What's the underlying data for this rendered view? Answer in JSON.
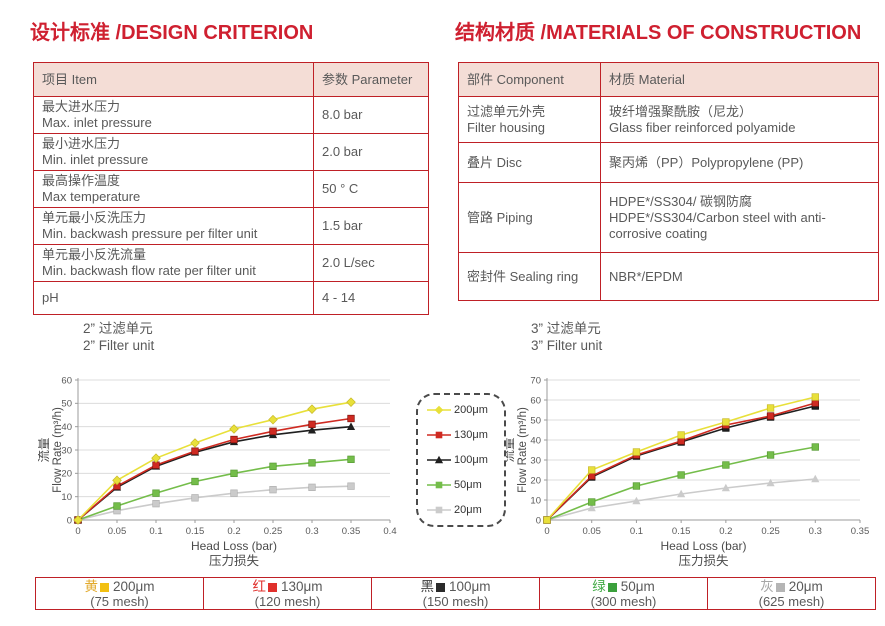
{
  "headings": {
    "design": "设计标准 /DESIGN CRITERION",
    "materials": "结构材质 /MATERIALS OF CONSTRUCTION",
    "accent_color": "#cf2030"
  },
  "design_table": {
    "headers": [
      "项目 Item",
      "参数 Parameter"
    ],
    "rows": [
      [
        [
          "最大进水压力",
          "Max. inlet pressure"
        ],
        [
          "8.0 bar"
        ]
      ],
      [
        [
          "最小进水压力",
          "Min. inlet pressure"
        ],
        [
          "2.0 bar"
        ]
      ],
      [
        [
          "最高操作温度",
          "Max temperature"
        ],
        [
          "50 ° C"
        ]
      ],
      [
        [
          "单元最小反洗压力",
          "Min. backwash pressure per filter unit"
        ],
        [
          "1.5 bar"
        ]
      ],
      [
        [
          "单元最小反洗流量",
          "Min. backwash flow rate per filter unit"
        ],
        [
          "2.0 L/sec"
        ]
      ],
      [
        [
          "pH"
        ],
        [
          "4 - 14"
        ]
      ]
    ]
  },
  "materials_table": {
    "headers": [
      "部件 Component",
      "材质 Material"
    ],
    "rows": [
      [
        [
          "过滤单元外壳",
          "Filter housing"
        ],
        [
          "玻纤增强聚酰胺（尼龙）",
          "Glass fiber reinforced polyamide"
        ]
      ],
      [
        [
          "叠片 Disc"
        ],
        [
          "聚丙烯（PP）Polypropylene (PP)"
        ]
      ],
      [
        [
          "管路 Piping"
        ],
        [
          "HDPE*/SS304/ 碳钢防腐",
          "HDPE*/SS304/Carbon steel with anti-corrosive coating"
        ]
      ],
      [
        [
          "密封件 Sealing ring"
        ],
        [
          "NBR*/EPDM"
        ]
      ]
    ]
  },
  "chart_data": [
    {
      "type": "line",
      "title_zh": "2” 过滤单元",
      "title_en": "2” Filter unit",
      "xlabel": "Head Loss (bar)",
      "xlabel_zh": "压力损失",
      "ylabel_zh": "流量",
      "ylabel": "Flow Rate (m³/h)",
      "x": [
        0,
        0.05,
        0.1,
        0.15,
        0.2,
        0.25,
        0.3,
        0.35
      ],
      "xticks": [
        0,
        0.05,
        0.1,
        0.15,
        0.2,
        0.25,
        0.3,
        0.35,
        0.4
      ],
      "xlim": [
        0,
        0.4
      ],
      "ylim": [
        0,
        60
      ],
      "yticks": [
        0,
        10,
        20,
        30,
        40,
        50,
        60
      ],
      "grid": true,
      "series": [
        {
          "name": "200μm",
          "marker": "diamond",
          "color": "#e8e03a",
          "edge": "#c8b92a",
          "values": [
            0,
            17,
            26.5,
            33,
            39,
            43,
            47.5,
            50.5
          ]
        },
        {
          "name": "130μm",
          "marker": "square",
          "color": "#cf2a21",
          "edge": "#7e150f",
          "values": [
            0,
            14.5,
            23.5,
            29.5,
            34.5,
            38,
            41,
            43.5
          ]
        },
        {
          "name": "100μm",
          "marker": "triangle",
          "color": "#1f1f1f",
          "edge": "#000000",
          "values": [
            0,
            14,
            23,
            29,
            33.5,
            36.5,
            38.5,
            40
          ]
        },
        {
          "name": "50μm",
          "marker": "square",
          "color": "#74bd4a",
          "edge": "#569a33",
          "values": [
            0,
            6,
            11.5,
            16.5,
            20,
            23,
            24.5,
            26
          ]
        },
        {
          "name": "20μm",
          "marker": "square",
          "color": "#cbcbcb",
          "edge": "#b0b0b0",
          "values": [
            0,
            4,
            7,
            9.5,
            11.5,
            13,
            14,
            14.5
          ]
        }
      ]
    },
    {
      "type": "line",
      "title_zh": "3” 过滤单元",
      "title_en": "3” Filter unit",
      "xlabel": "Head Loss (bar)",
      "xlabel_zh": "压力损失",
      "ylabel_zh": "流量",
      "ylabel": "Flow Rate (m³/h)",
      "x": [
        0,
        0.05,
        0.1,
        0.15,
        0.2,
        0.25,
        0.3
      ],
      "xticks": [
        0,
        0.05,
        0.1,
        0.15,
        0.2,
        0.25,
        0.3,
        0.35
      ],
      "xlim": [
        0,
        0.35
      ],
      "ylim": [
        0,
        70
      ],
      "yticks": [
        0,
        10,
        20,
        30,
        40,
        50,
        60,
        70
      ],
      "grid": true,
      "series": [
        {
          "name": "200μm",
          "marker": "square",
          "color": "#e8e03a",
          "edge": "#c8b92a",
          "values": [
            0,
            25,
            34,
            42.5,
            49,
            56,
            61.5
          ]
        },
        {
          "name": "130μm",
          "marker": "square",
          "color": "#cf2a21",
          "edge": "#7e150f",
          "values": [
            0,
            22,
            32.5,
            39.5,
            47.5,
            52,
            58.5
          ]
        },
        {
          "name": "100μm",
          "marker": "square",
          "color": "#1f1f1f",
          "edge": "#000000",
          "values": [
            0,
            21.5,
            32,
            39,
            46,
            51.5,
            57
          ]
        },
        {
          "name": "50μm",
          "marker": "square",
          "color": "#74bd4a",
          "edge": "#569a33",
          "values": [
            0,
            9,
            17,
            22.5,
            27.5,
            32.5,
            36.5
          ]
        },
        {
          "name": "20μm",
          "marker": "triangle",
          "color": "#cbcbcb",
          "edge": "#b0b0b0",
          "values": [
            0,
            6,
            9.5,
            13,
            16,
            18.5,
            20.5
          ]
        }
      ]
    }
  ],
  "filter_legend": {
    "entries": [
      {
        "label": "200μm",
        "marker": "diamond",
        "color": "#e8e03a"
      },
      {
        "label": "130μm",
        "marker": "square",
        "color": "#cf2a21"
      },
      {
        "label": "100μm",
        "marker": "triangle",
        "color": "#1f1f1f"
      },
      {
        "label": "50μm",
        "marker": "square",
        "color": "#74bd4a"
      },
      {
        "label": "20μm",
        "marker": "square",
        "color": "#cbcbcb"
      }
    ]
  },
  "bottom_legend": {
    "cells": [
      {
        "color_zh": "黄",
        "color": "#e2a92b",
        "swatch": "#f2c012",
        "size": "200μm",
        "mesh": "(75 mesh)"
      },
      {
        "color_zh": "红",
        "color": "#e0302c",
        "swatch": "#e0302c",
        "size": "130μm",
        "mesh": "(120 mesh)"
      },
      {
        "color_zh": "黑",
        "color": "#404040",
        "swatch": "#2b2b2b",
        "size": "100μm",
        "mesh": "(150 mesh)"
      },
      {
        "color_zh": "绿",
        "color": "#44ab47",
        "swatch": "#3ba03c",
        "size": "50μm",
        "mesh": "(300 mesh)"
      },
      {
        "color_zh": "灰",
        "color": "#a6a6a6",
        "swatch": "#b5b5b5",
        "size": "20μm",
        "mesh": "(625 mesh)"
      }
    ]
  }
}
